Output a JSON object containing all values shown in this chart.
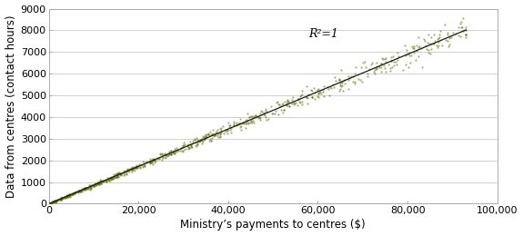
{
  "title": "",
  "xlabel": "Ministry’s payments to centres ($)",
  "ylabel": "Data from centres (contact hours)",
  "r2_label": "R²=1",
  "r2_x": 58000,
  "r2_y": 7700,
  "x_min": 0,
  "x_max": 100000,
  "y_min": 0,
  "y_max": 9000,
  "x_ticks": [
    0,
    20000,
    40000,
    60000,
    80000,
    100000
  ],
  "x_tick_labels": [
    "0",
    "20,000",
    "40,000",
    "60,000",
    "80,000",
    "100,000"
  ],
  "y_ticks": [
    0,
    1000,
    2000,
    3000,
    4000,
    5000,
    6000,
    7000,
    8000,
    9000
  ],
  "scatter_color": "#636b00",
  "line_color": "#1a1a1a",
  "slope": 0.0862,
  "intercept": 0,
  "n_points": 800,
  "noise_scale": 0.003,
  "noise_fixed": 15,
  "marker_size": 2.5,
  "alpha": 0.55,
  "bg_color": "#ffffff",
  "grid_color": "#c8c8c8",
  "font_size_label": 8.5,
  "font_size_tick": 8,
  "font_size_annotation": 9
}
